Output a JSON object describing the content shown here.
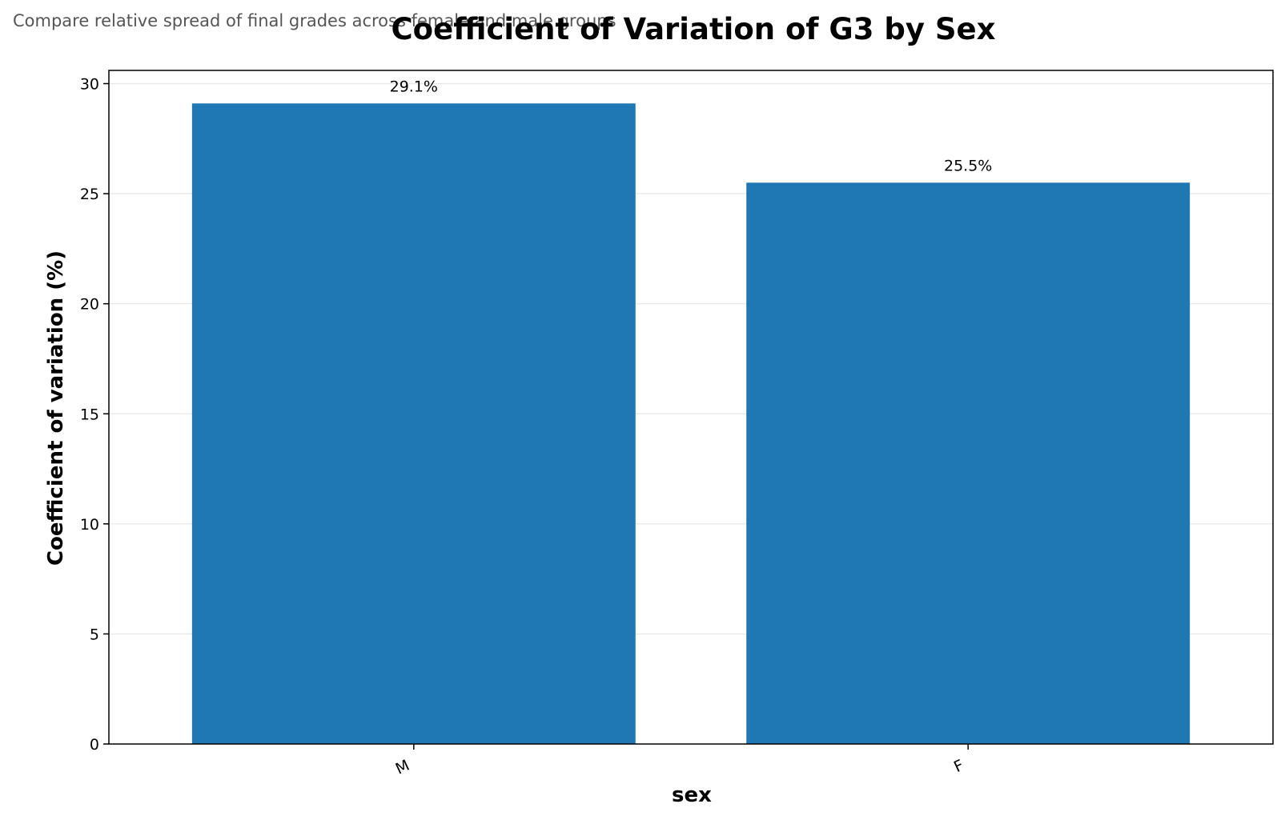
{
  "chart_data": {
    "type": "bar",
    "title": "Coefficient of Variation of G3 by Sex",
    "subtitle": "Compare relative spread of final grades across female and male groups",
    "xlabel": "sex",
    "ylabel": "Coefficient of variation (%)",
    "categories": [
      "M",
      "F"
    ],
    "values": [
      29.1,
      25.5
    ],
    "data_labels": [
      "29.1%",
      "25.5%"
    ],
    "ylim": [
      0,
      30.6
    ],
    "yticks": [
      0,
      5,
      10,
      15,
      20,
      25,
      30
    ],
    "grid": "y",
    "bar_color": "#1f77b4",
    "grid_color": "#e6e6e6"
  }
}
